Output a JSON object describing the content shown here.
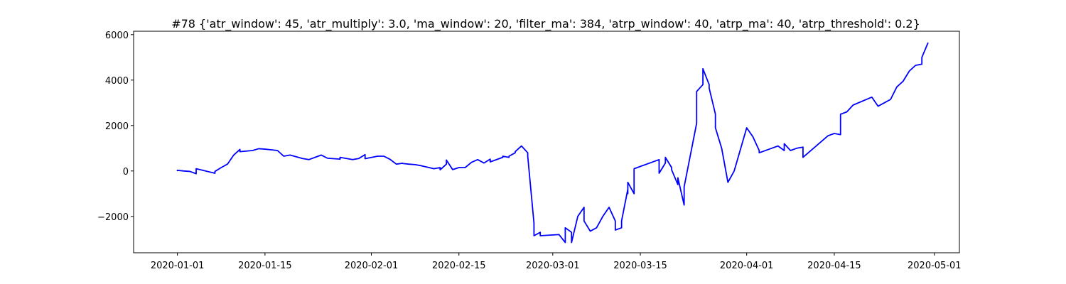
{
  "chart_data": {
    "type": "line",
    "title": "#78 {'atr_window': 45, 'atr_multiply': 3.0, 'ma_window': 20, 'filter_ma': 384, 'atrp_window': 40, 'atrp_ma': 40, 'atrp_threshold': 0.2}",
    "xlabel": "",
    "ylabel": "",
    "grid": false,
    "line_color": "#0000ff",
    "xlim": [
      "2019-12-25",
      "2020-05-05"
    ],
    "ylim": [
      -3600,
      6150
    ],
    "x_ticks": [
      "2020-01-01",
      "2020-01-15",
      "2020-02-01",
      "2020-02-15",
      "2020-03-01",
      "2020-03-15",
      "2020-04-01",
      "2020-04-15",
      "2020-05-01"
    ],
    "y_ticks": [
      -2000,
      0,
      2000,
      4000,
      6000
    ],
    "y_tick_labels": [
      "−2000",
      "0",
      "2000",
      "4000",
      "6000"
    ],
    "x": [
      "2020-01-01",
      "2020-01-01",
      "2020-01-02",
      "2020-01-03",
      "2020-01-04",
      "2020-01-04",
      "2020-01-07",
      "2020-01-07",
      "2020-01-08",
      "2020-01-09",
      "2020-01-10",
      "2020-01-11",
      "2020-01-11",
      "2020-01-13",
      "2020-01-14",
      "2020-01-15",
      "2020-01-16",
      "2020-01-17",
      "2020-01-18",
      "2020-01-19",
      "2020-01-21",
      "2020-01-22",
      "2020-01-23",
      "2020-01-24",
      "2020-01-25",
      "2020-01-25",
      "2020-01-27",
      "2020-01-27",
      "2020-01-29",
      "2020-01-30",
      "2020-01-31",
      "2020-01-31",
      "2020-02-02",
      "2020-02-03",
      "2020-02-04",
      "2020-02-05",
      "2020-02-06",
      "2020-02-06",
      "2020-02-07",
      "2020-02-08",
      "2020-02-09",
      "2020-02-11",
      "2020-02-12",
      "2020-02-12",
      "2020-02-13",
      "2020-02-13",
      "2020-02-14",
      "2020-02-15",
      "2020-02-16",
      "2020-02-17",
      "2020-02-18",
      "2020-02-19",
      "2020-02-20",
      "2020-02-20",
      "2020-02-22",
      "2020-02-22",
      "2020-02-23",
      "2020-02-23",
      "2020-02-24",
      "2020-02-24",
      "2020-02-25",
      "2020-02-26",
      "2020-02-26",
      "2020-02-27",
      "2020-02-27",
      "2020-02-28",
      "2020-02-28",
      "2020-03-02",
      "2020-03-03",
      "2020-03-03",
      "2020-03-04",
      "2020-03-04",
      "2020-03-05",
      "2020-03-06",
      "2020-03-06",
      "2020-03-07",
      "2020-03-08",
      "2020-03-09",
      "2020-03-10",
      "2020-03-11",
      "2020-03-11",
      "2020-03-12",
      "2020-03-12",
      "2020-03-13",
      "2020-03-13",
      "2020-03-13",
      "2020-03-14",
      "2020-03-14",
      "2020-03-18",
      "2020-03-18",
      "2020-03-19",
      "2020-03-19",
      "2020-03-20",
      "2020-03-20",
      "2020-03-21",
      "2020-03-21",
      "2020-03-22",
      "2020-03-22",
      "2020-03-24",
      "2020-03-24",
      "2020-03-25",
      "2020-03-25",
      "2020-03-26",
      "2020-03-26",
      "2020-03-26",
      "2020-03-27",
      "2020-03-27",
      "2020-03-28",
      "2020-03-29",
      "2020-03-30",
      "2020-04-01",
      "2020-04-02",
      "2020-04-03",
      "2020-04-03",
      "2020-04-05",
      "2020-04-06",
      "2020-04-07",
      "2020-04-07",
      "2020-04-08",
      "2020-04-09",
      "2020-04-10",
      "2020-04-10",
      "2020-04-14",
      "2020-04-15",
      "2020-04-16",
      "2020-04-16",
      "2020-04-17",
      "2020-04-17",
      "2020-04-18",
      "2020-04-18",
      "2020-04-21",
      "2020-04-22",
      "2020-04-23",
      "2020-04-24",
      "2020-04-25",
      "2020-04-26",
      "2020-04-27",
      "2020-04-28",
      "2020-04-29",
      "2020-04-29",
      "2020-04-30"
    ],
    "y": [
      -10,
      30,
      0,
      -20,
      -120,
      100,
      -100,
      -20,
      150,
      300,
      700,
      950,
      850,
      900,
      980,
      960,
      930,
      900,
      650,
      700,
      550,
      500,
      600,
      700,
      560,
      560,
      520,
      600,
      500,
      550,
      720,
      540,
      650,
      650,
      510,
      300,
      340,
      330,
      300,
      280,
      230,
      100,
      150,
      50,
      300,
      480,
      60,
      150,
      150,
      380,
      500,
      350,
      520,
      400,
      600,
      650,
      600,
      650,
      800,
      850,
      1100,
      800,
      650,
      -2300,
      -2850,
      -2700,
      -2850,
      -2800,
      -3150,
      -2500,
      -2700,
      -3150,
      -2000,
      -1600,
      -2200,
      -2650,
      -2500,
      -2000,
      -1600,
      -2200,
      -2600,
      -2500,
      -2200,
      -800,
      -1000,
      -500,
      -1000,
      100,
      500,
      -100,
      350,
      600,
      150,
      50,
      -600,
      -300,
      -1500,
      -700,
      2100,
      3500,
      3800,
      4500,
      3800,
      3700,
      3650,
      2500,
      1900,
      1000,
      -500,
      0,
      1900,
      1500,
      900,
      800,
      1000,
      1100,
      900,
      1200,
      900,
      1000,
      1050,
      600,
      1550,
      1650,
      1600,
      2500,
      2600,
      2600,
      2900,
      2900,
      3250,
      2850,
      3000,
      3150,
      3700,
      3950,
      4400,
      4650,
      4700,
      5000,
      5650
    ]
  }
}
